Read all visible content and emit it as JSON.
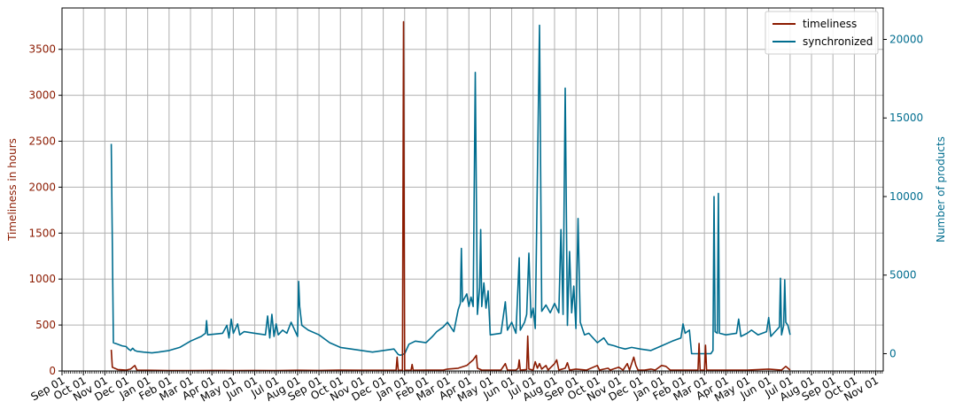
{
  "chart_data": {
    "type": "line",
    "title": "",
    "xlabel": "",
    "ylabel_left": "Timeliness in hours",
    "ylabel_right": "Number of products",
    "x_tick_labels": [
      "Sep 01",
      "Oct 01",
      "Nov 01",
      "Dec 01",
      "Jan 01",
      "Feb 01",
      "Mar 01",
      "Apr 01",
      "May 01",
      "Jun 01",
      "Jul 01",
      "Aug 01",
      "Sep 01",
      "Oct 01",
      "Nov 01",
      "Dec 01",
      "Jan 01",
      "Feb 01",
      "Mar 01",
      "Apr 01",
      "May 01",
      "Jun 01",
      "Jul 01",
      "Aug 01",
      "Sep 01",
      "Oct 01",
      "Nov 01",
      "Dec 01",
      "Jan 01",
      "Feb 01",
      "Mar 01",
      "Apr 01",
      "May 01",
      "Jun 01",
      "Jul 01",
      "Aug 01",
      "Sep 01",
      "Oct 01",
      "Nov 01"
    ],
    "y_left_ticks": [
      0,
      500,
      1000,
      1500,
      2000,
      2500,
      3000,
      3500
    ],
    "y_right_ticks": [
      0,
      5000,
      10000,
      15000,
      20000
    ],
    "ylim_left": [
      0,
      3950
    ],
    "ylim_right": [
      -1100,
      22000
    ],
    "grid": true,
    "legend_position": "top-right",
    "colors": {
      "timeliness": "#8b1a00",
      "synchronized": "#006d8f"
    },
    "series": [
      {
        "name": "timeliness",
        "axis": "left",
        "points": [
          [
            2.3,
            230
          ],
          [
            2.35,
            40
          ],
          [
            2.6,
            15
          ],
          [
            3.0,
            10
          ],
          [
            3.2,
            20
          ],
          [
            3.4,
            60
          ],
          [
            3.5,
            10
          ],
          [
            4.0,
            8
          ],
          [
            5.0,
            5
          ],
          [
            6.0,
            5
          ],
          [
            7.0,
            6
          ],
          [
            8.0,
            5
          ],
          [
            9.0,
            6
          ],
          [
            10.0,
            5
          ],
          [
            11.0,
            8
          ],
          [
            12.0,
            6
          ],
          [
            13.0,
            10
          ],
          [
            14.0,
            8
          ],
          [
            15.0,
            8
          ],
          [
            15.6,
            10
          ],
          [
            15.65,
            150
          ],
          [
            15.7,
            10
          ],
          [
            15.9,
            8
          ],
          [
            15.95,
            3800
          ],
          [
            16.0,
            10
          ],
          [
            16.3,
            8
          ],
          [
            16.35,
            70
          ],
          [
            16.4,
            8
          ],
          [
            17.0,
            10
          ],
          [
            17.8,
            10
          ],
          [
            18.0,
            20
          ],
          [
            18.5,
            30
          ],
          [
            18.9,
            60
          ],
          [
            19.2,
            120
          ],
          [
            19.35,
            170
          ],
          [
            19.4,
            30
          ],
          [
            19.6,
            10
          ],
          [
            20.0,
            10
          ],
          [
            20.5,
            10
          ],
          [
            20.7,
            80
          ],
          [
            20.8,
            10
          ],
          [
            21.2,
            10
          ],
          [
            21.3,
            30
          ],
          [
            21.35,
            120
          ],
          [
            21.4,
            10
          ],
          [
            21.7,
            15
          ],
          [
            21.75,
            380
          ],
          [
            21.8,
            20
          ],
          [
            22.0,
            10
          ],
          [
            22.1,
            100
          ],
          [
            22.2,
            30
          ],
          [
            22.3,
            80
          ],
          [
            22.4,
            20
          ],
          [
            22.6,
            60
          ],
          [
            22.7,
            10
          ],
          [
            23.0,
            80
          ],
          [
            23.1,
            120
          ],
          [
            23.2,
            10
          ],
          [
            23.5,
            30
          ],
          [
            23.6,
            90
          ],
          [
            23.7,
            10
          ],
          [
            24.0,
            20
          ],
          [
            24.5,
            10
          ],
          [
            25.0,
            60
          ],
          [
            25.1,
            10
          ],
          [
            25.5,
            30
          ],
          [
            25.6,
            10
          ],
          [
            26.0,
            40
          ],
          [
            26.2,
            10
          ],
          [
            26.4,
            80
          ],
          [
            26.5,
            10
          ],
          [
            26.7,
            150
          ],
          [
            26.8,
            60
          ],
          [
            26.9,
            10
          ],
          [
            27.2,
            10
          ],
          [
            27.5,
            20
          ],
          [
            27.7,
            10
          ],
          [
            28.0,
            60
          ],
          [
            28.2,
            50
          ],
          [
            28.4,
            10
          ],
          [
            29.0,
            10
          ],
          [
            29.7,
            10
          ],
          [
            29.75,
            300
          ],
          [
            29.8,
            10
          ],
          [
            30.0,
            10
          ],
          [
            30.05,
            280
          ],
          [
            30.1,
            10
          ],
          [
            31.0,
            10
          ],
          [
            32.0,
            10
          ],
          [
            33.0,
            20
          ],
          [
            33.6,
            10
          ],
          [
            33.8,
            50
          ],
          [
            33.9,
            30
          ],
          [
            34.0,
            10
          ]
        ]
      },
      {
        "name": "synchronized",
        "axis": "right",
        "points": [
          [
            2.3,
            13350
          ],
          [
            2.4,
            700
          ],
          [
            2.6,
            600
          ],
          [
            2.8,
            500
          ],
          [
            3.0,
            450
          ],
          [
            3.1,
            300
          ],
          [
            3.2,
            200
          ],
          [
            3.3,
            350
          ],
          [
            3.4,
            200
          ],
          [
            3.5,
            150
          ],
          [
            3.8,
            100
          ],
          [
            4.2,
            50
          ],
          [
            4.5,
            100
          ],
          [
            5.0,
            200
          ],
          [
            5.5,
            400
          ],
          [
            6.0,
            800
          ],
          [
            6.5,
            1100
          ],
          [
            6.7,
            1300
          ],
          [
            6.75,
            2100
          ],
          [
            6.8,
            1200
          ],
          [
            7.5,
            1300
          ],
          [
            7.7,
            1800
          ],
          [
            7.8,
            1000
          ],
          [
            7.9,
            2200
          ],
          [
            8.0,
            1300
          ],
          [
            8.2,
            1900
          ],
          [
            8.3,
            1200
          ],
          [
            8.5,
            1400
          ],
          [
            9.0,
            1300
          ],
          [
            9.5,
            1200
          ],
          [
            9.6,
            2400
          ],
          [
            9.7,
            1000
          ],
          [
            9.8,
            2500
          ],
          [
            9.9,
            1100
          ],
          [
            10.0,
            1900
          ],
          [
            10.1,
            1200
          ],
          [
            10.3,
            1500
          ],
          [
            10.5,
            1300
          ],
          [
            10.7,
            2000
          ],
          [
            11.0,
            1100
          ],
          [
            11.05,
            4600
          ],
          [
            11.1,
            3000
          ],
          [
            11.2,
            1800
          ],
          [
            11.5,
            1500
          ],
          [
            12.0,
            1200
          ],
          [
            12.5,
            700
          ],
          [
            13.0,
            400
          ],
          [
            13.5,
            300
          ],
          [
            14.0,
            200
          ],
          [
            14.5,
            100
          ],
          [
            15.0,
            200
          ],
          [
            15.5,
            300
          ],
          [
            15.7,
            -50
          ],
          [
            15.8,
            -100
          ],
          [
            16.0,
            0
          ],
          [
            16.2,
            600
          ],
          [
            16.5,
            800
          ],
          [
            17.0,
            700
          ],
          [
            17.3,
            1100
          ],
          [
            17.5,
            1400
          ],
          [
            17.8,
            1700
          ],
          [
            18.0,
            2000
          ],
          [
            18.3,
            1400
          ],
          [
            18.5,
            2800
          ],
          [
            18.6,
            3200
          ],
          [
            18.65,
            6700
          ],
          [
            18.7,
            3300
          ],
          [
            18.9,
            3800
          ],
          [
            19.0,
            3000
          ],
          [
            19.1,
            3600
          ],
          [
            19.2,
            3000
          ],
          [
            19.3,
            17900
          ],
          [
            19.4,
            2500
          ],
          [
            19.5,
            4200
          ],
          [
            19.55,
            7900
          ],
          [
            19.6,
            3000
          ],
          [
            19.7,
            4500
          ],
          [
            19.8,
            2900
          ],
          [
            19.9,
            4000
          ],
          [
            20.0,
            1200
          ],
          [
            20.5,
            1300
          ],
          [
            20.7,
            3300
          ],
          [
            20.8,
            1500
          ],
          [
            21.0,
            2000
          ],
          [
            21.2,
            1300
          ],
          [
            21.35,
            6100
          ],
          [
            21.4,
            1500
          ],
          [
            21.6,
            2000
          ],
          [
            21.7,
            2500
          ],
          [
            21.8,
            6400
          ],
          [
            21.9,
            2300
          ],
          [
            22.0,
            2900
          ],
          [
            22.1,
            1600
          ],
          [
            22.3,
            20900
          ],
          [
            22.4,
            2700
          ],
          [
            22.6,
            3100
          ],
          [
            22.8,
            2600
          ],
          [
            23.0,
            3200
          ],
          [
            23.2,
            2600
          ],
          [
            23.3,
            7900
          ],
          [
            23.4,
            2500
          ],
          [
            23.5,
            16900
          ],
          [
            23.6,
            1800
          ],
          [
            23.7,
            6500
          ],
          [
            23.8,
            2600
          ],
          [
            23.9,
            4300
          ],
          [
            24.0,
            1600
          ],
          [
            24.1,
            8600
          ],
          [
            24.2,
            2000
          ],
          [
            24.4,
            1200
          ],
          [
            24.6,
            1300
          ],
          [
            25.0,
            700
          ],
          [
            25.3,
            1000
          ],
          [
            25.5,
            600
          ],
          [
            25.8,
            500
          ],
          [
            26.0,
            400
          ],
          [
            26.3,
            300
          ],
          [
            26.6,
            400
          ],
          [
            27.0,
            300
          ],
          [
            27.5,
            200
          ],
          [
            28.0,
            500
          ],
          [
            28.5,
            800
          ],
          [
            28.9,
            1000
          ],
          [
            29.0,
            1900
          ],
          [
            29.1,
            1300
          ],
          [
            29.3,
            1500
          ],
          [
            29.4,
            0
          ],
          [
            29.6,
            0
          ],
          [
            30.0,
            0
          ],
          [
            30.3,
            0
          ],
          [
            30.4,
            200
          ],
          [
            30.45,
            10000
          ],
          [
            30.5,
            1400
          ],
          [
            30.6,
            1300
          ],
          [
            30.65,
            10200
          ],
          [
            30.7,
            1300
          ],
          [
            31.0,
            1200
          ],
          [
            31.5,
            1300
          ],
          [
            31.6,
            2200
          ],
          [
            31.7,
            1100
          ],
          [
            32.0,
            1300
          ],
          [
            32.2,
            1500
          ],
          [
            32.5,
            1200
          ],
          [
            32.9,
            1400
          ],
          [
            33.0,
            2300
          ],
          [
            33.1,
            1100
          ],
          [
            33.3,
            1400
          ],
          [
            33.5,
            1700
          ],
          [
            33.55,
            4800
          ],
          [
            33.6,
            1200
          ],
          [
            33.7,
            1800
          ],
          [
            33.75,
            4700
          ],
          [
            33.8,
            2000
          ],
          [
            33.9,
            1800
          ],
          [
            34.0,
            1200
          ]
        ]
      }
    ]
  }
}
